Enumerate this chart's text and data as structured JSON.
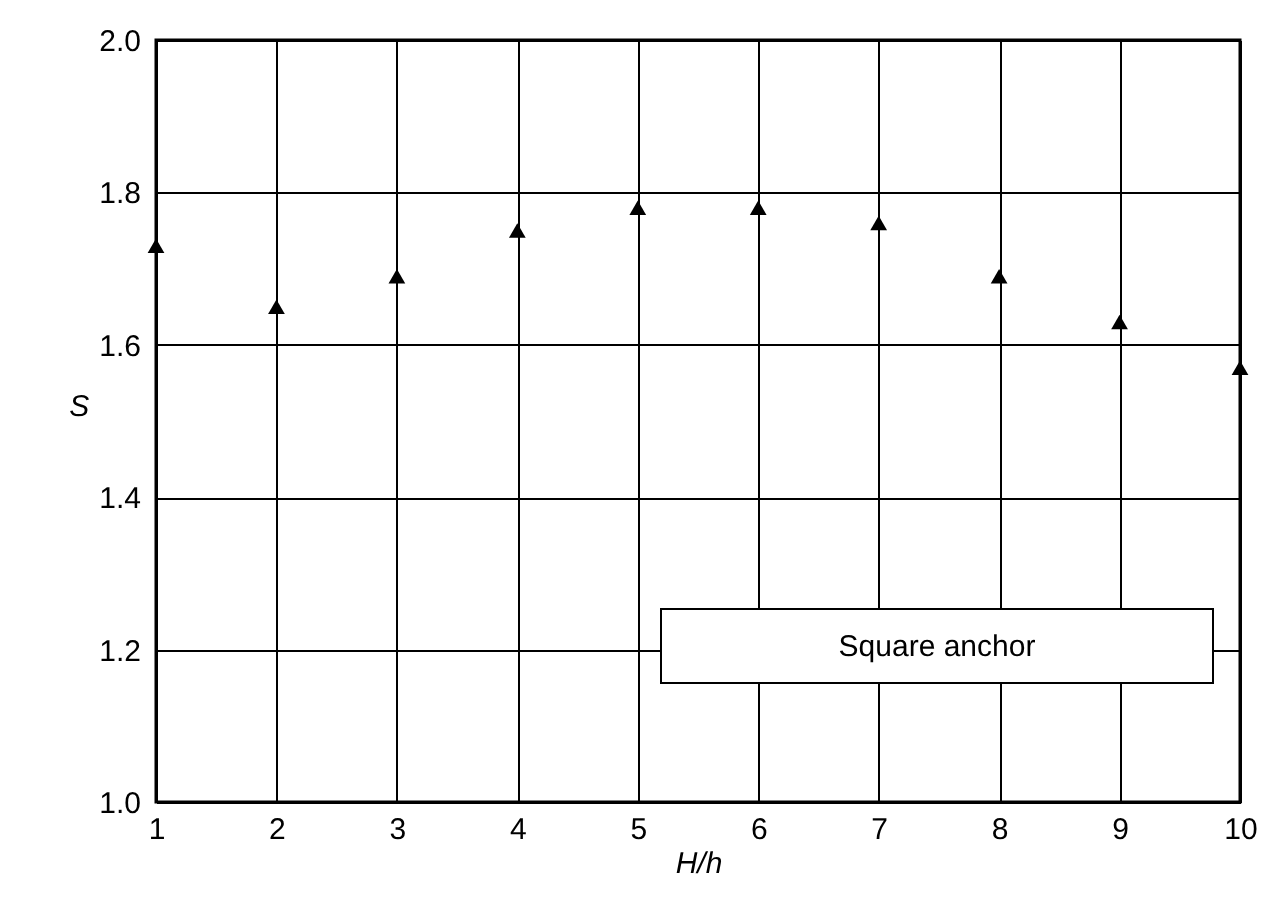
{
  "chart_data": {
    "type": "scatter",
    "xlabel": "H/h",
    "ylabel": "S",
    "x": [
      1,
      2,
      3,
      4,
      5,
      6,
      7,
      8,
      9,
      10
    ],
    "series": [
      {
        "color": "#000000",
        "values": [
          1.73,
          1.65,
          1.69,
          1.75,
          1.78,
          1.78,
          1.76,
          1.69,
          1.63,
          1.57
        ]
      }
    ],
    "xlim": [
      1,
      10
    ],
    "xticks": [
      1,
      2,
      3,
      4,
      5,
      6,
      7,
      8,
      9,
      10
    ],
    "ylim": [
      1.0,
      2.0
    ],
    "yticks": [
      {
        "value": 1,
        "label": "1.0"
      },
      1.2,
      1.4,
      1.6,
      1.8,
      {
        "value": 2,
        "label": "2.0"
      }
    ],
    "grid": true,
    "marker": "triangle",
    "annotations": [
      "Square anchor"
    ]
  }
}
